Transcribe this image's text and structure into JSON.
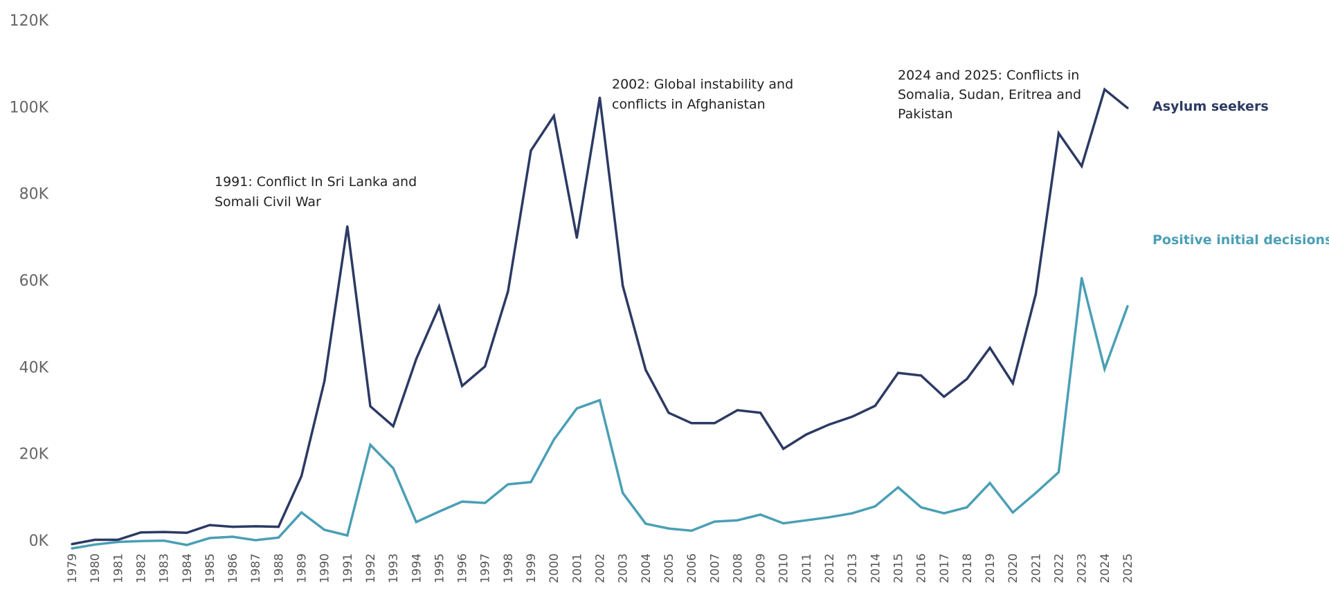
{
  "chart_data": {
    "type": "line",
    "title": "",
    "xlabel": "",
    "ylabel": "",
    "ylim": [
      0,
      120000
    ],
    "y_ticks": [
      {
        "value": 0,
        "label": "0K"
      },
      {
        "value": 20000,
        "label": "20K"
      },
      {
        "value": 40000,
        "label": "40K"
      },
      {
        "value": 60000,
        "label": "60K"
      },
      {
        "value": 80000,
        "label": "80K"
      },
      {
        "value": 100000,
        "label": "100K"
      },
      {
        "value": 120000,
        "label": "120K"
      }
    ],
    "grid": false,
    "legend": "right",
    "x": [
      "1979",
      "1980",
      "1981",
      "1982",
      "1983",
      "1984",
      "1985",
      "1986",
      "1987",
      "1988",
      "1989",
      "1990",
      "1991",
      "1992",
      "1993",
      "1994",
      "1995",
      "1996",
      "1997",
      "1998",
      "1999",
      "2000",
      "2001",
      "2002",
      "2003",
      "2004",
      "2005",
      "2006",
      "2007",
      "2008",
      "2009",
      "2010",
      "2011",
      "2012",
      "2013",
      "2014",
      "2015",
      "2016",
      "2017",
      "2018",
      "2019",
      "2020",
      "2021",
      "2022",
      "2023",
      "2024",
      "2025"
    ],
    "series": [
      {
        "name": "Asylum seekers",
        "color": "#2c3a63",
        "values": [
          -900,
          100,
          100,
          1800,
          1900,
          1700,
          3500,
          3100,
          3200,
          3100,
          14800,
          36700,
          72400,
          30900,
          26300,
          41800,
          53900,
          35600,
          40100,
          57400,
          89900,
          97900,
          69800,
          102100,
          58700,
          39300,
          29400,
          27000,
          27000,
          30000,
          29400,
          21100,
          24400,
          26700,
          28500,
          31000,
          38600,
          38000,
          33100,
          37200,
          44400,
          36200,
          56800,
          93900,
          86300,
          104000,
          99700
        ]
      },
      {
        "name": "Positive initial decisions",
        "color": "#4a9fb5",
        "values": [
          -1900,
          -1000,
          -400,
          -200,
          -100,
          -1100,
          500,
          800,
          0,
          600,
          6400,
          2400,
          1100,
          22000,
          16600,
          4200,
          6600,
          8900,
          8600,
          12900,
          13400,
          23200,
          30400,
          32300,
          10900,
          3800,
          2700,
          2200,
          4300,
          4600,
          5900,
          3900,
          4600,
          5300,
          6200,
          7800,
          12200,
          7600,
          6200,
          7600,
          13200,
          6400,
          10900,
          15700,
          60500,
          39500,
          54000
        ]
      }
    ],
    "annotations": [
      {
        "lines": [
          "1991: Conflict In Sri Lanka and",
          "Somali Civil War"
        ]
      },
      {
        "lines": [
          "2002: Global instability and",
          "conflicts in Afghanistan"
        ]
      },
      {
        "lines": [
          "2024 and 2025: Conflicts in",
          "Somalia, Sudan, Eritrea and",
          "Pakistan"
        ]
      }
    ]
  }
}
